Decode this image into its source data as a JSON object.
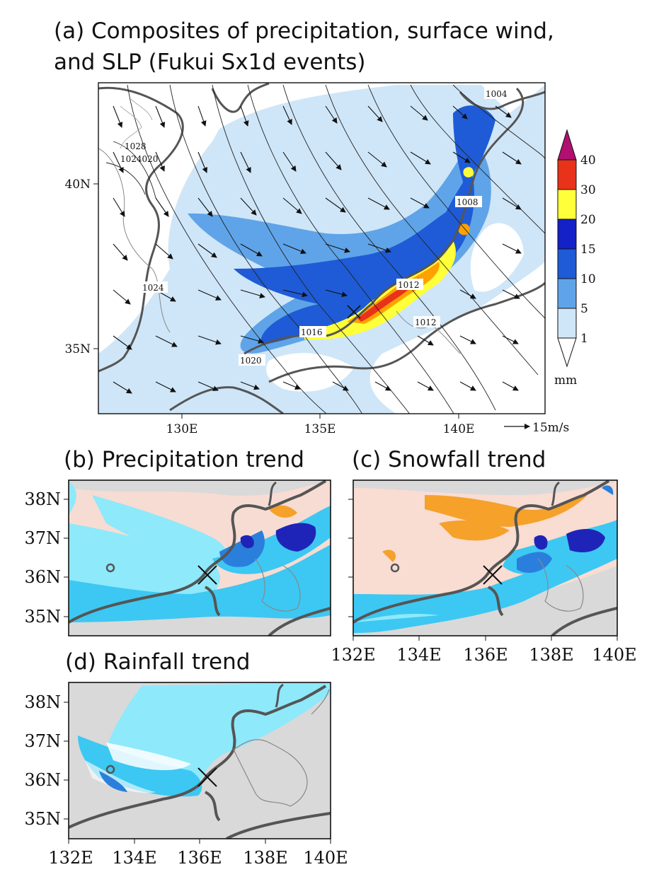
{
  "panel_a": {
    "title_line1": "(a) Composites of precipitation, surface wind,",
    "title_line2": "and SLP (Fukui Sx1d events)",
    "x_ticks": [
      "130E",
      "135E",
      "140E"
    ],
    "y_ticks": [
      "40N",
      "35N"
    ],
    "colorbar": {
      "levels": [
        "1",
        "5",
        "10",
        "15",
        "20",
        "30",
        "40"
      ],
      "unit": "mm",
      "colors": [
        "#ffffff",
        "#cfe6f8",
        "#5fa4e8",
        "#1f5bd6",
        "#1420c8",
        "#ffff3a",
        "#ffa100",
        "#e8321a",
        "#b01070"
      ]
    },
    "reference_vector": "15m/s",
    "isobar_labels": [
      "1004",
      "1008",
      "1012",
      "1012",
      "1016",
      "1020",
      "1024",
      "1028",
      "1024020"
    ]
  },
  "panel_b": {
    "title": "(b) Precipitation trend"
  },
  "panel_c": {
    "title": "(c) Snowfall trend"
  },
  "panel_d": {
    "title": "(d) Rainfall trend"
  },
  "trend_axes": {
    "x_ticks": [
      "132E",
      "134E",
      "136E",
      "138E",
      "140E"
    ],
    "y_ticks": [
      "38N",
      "37N",
      "36N",
      "35N"
    ]
  },
  "colors": {
    "land_gray": "#d9d9d9",
    "light_cyan": "#8ee9fb",
    "cyan": "#3cc8f2",
    "blue": "#2a7fdc",
    "dark_blue": "#1f24b8",
    "pink": "#f9dcd2",
    "orange": "#f5a12a",
    "coast": "#555555"
  }
}
